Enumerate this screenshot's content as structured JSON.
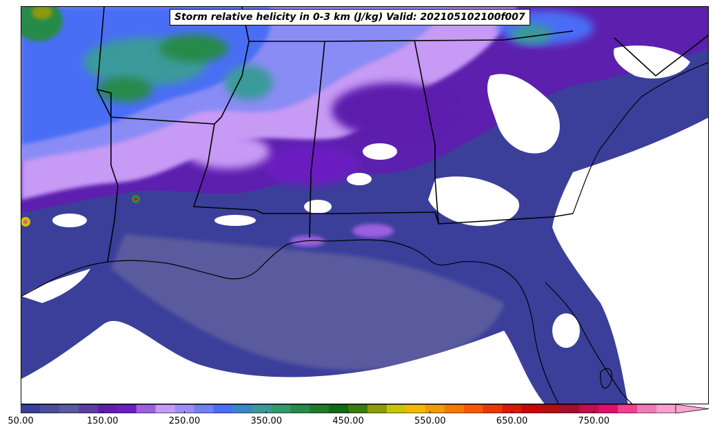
{
  "figure": {
    "title": "Storm relative helicity in 0-3 km (J/kg) Valid: 202105102100f007"
  },
  "colorbar": {
    "tick_labels": [
      "50.00",
      "150.00",
      "250.00",
      "350.00",
      "450.00",
      "550.00",
      "650.00",
      "750.00"
    ],
    "tick_values": [
      50,
      150,
      250,
      350,
      450,
      550,
      650,
      750
    ],
    "range": [
      50,
      850
    ],
    "extend": "max",
    "colors": [
      "#3b3f9a",
      "#4a4d99",
      "#5a5a9e",
      "#5b3fa3",
      "#5d1fae",
      "#6a1fc0",
      "#9b5fe0",
      "#c79af5",
      "#a08cf5",
      "#6f7ff5",
      "#4a6ef5",
      "#3a86c8",
      "#3a9a9a",
      "#2f9a6a",
      "#278a48",
      "#1f7a2a",
      "#116a16",
      "#3d7a10",
      "#8f9a10",
      "#c7c40a",
      "#f5b800",
      "#f59a00",
      "#f57a00",
      "#f55a00",
      "#e83a00",
      "#d81a00",
      "#c80808",
      "#b01010",
      "#a0102a",
      "#c0104a",
      "#e0106a",
      "#f0408f",
      "#f27ab8",
      "#fa9fd0"
    ],
    "extend_color": "#f8a4d2"
  },
  "map": {
    "region": "Southeastern United States and Gulf of Mexico",
    "background_color": "#ffffff",
    "field_colors": {
      "low": "#3b3f9a",
      "mid_low": "#5a5a9e",
      "mid": "#5d1fae",
      "mid_high": "#9b5fe0",
      "light_purple": "#c79af5",
      "periwinkle": "#8a8cf5",
      "blue": "#4a6ef5",
      "teal": "#3a9a9a",
      "green": "#278a48",
      "olive": "#8f9a10"
    }
  }
}
